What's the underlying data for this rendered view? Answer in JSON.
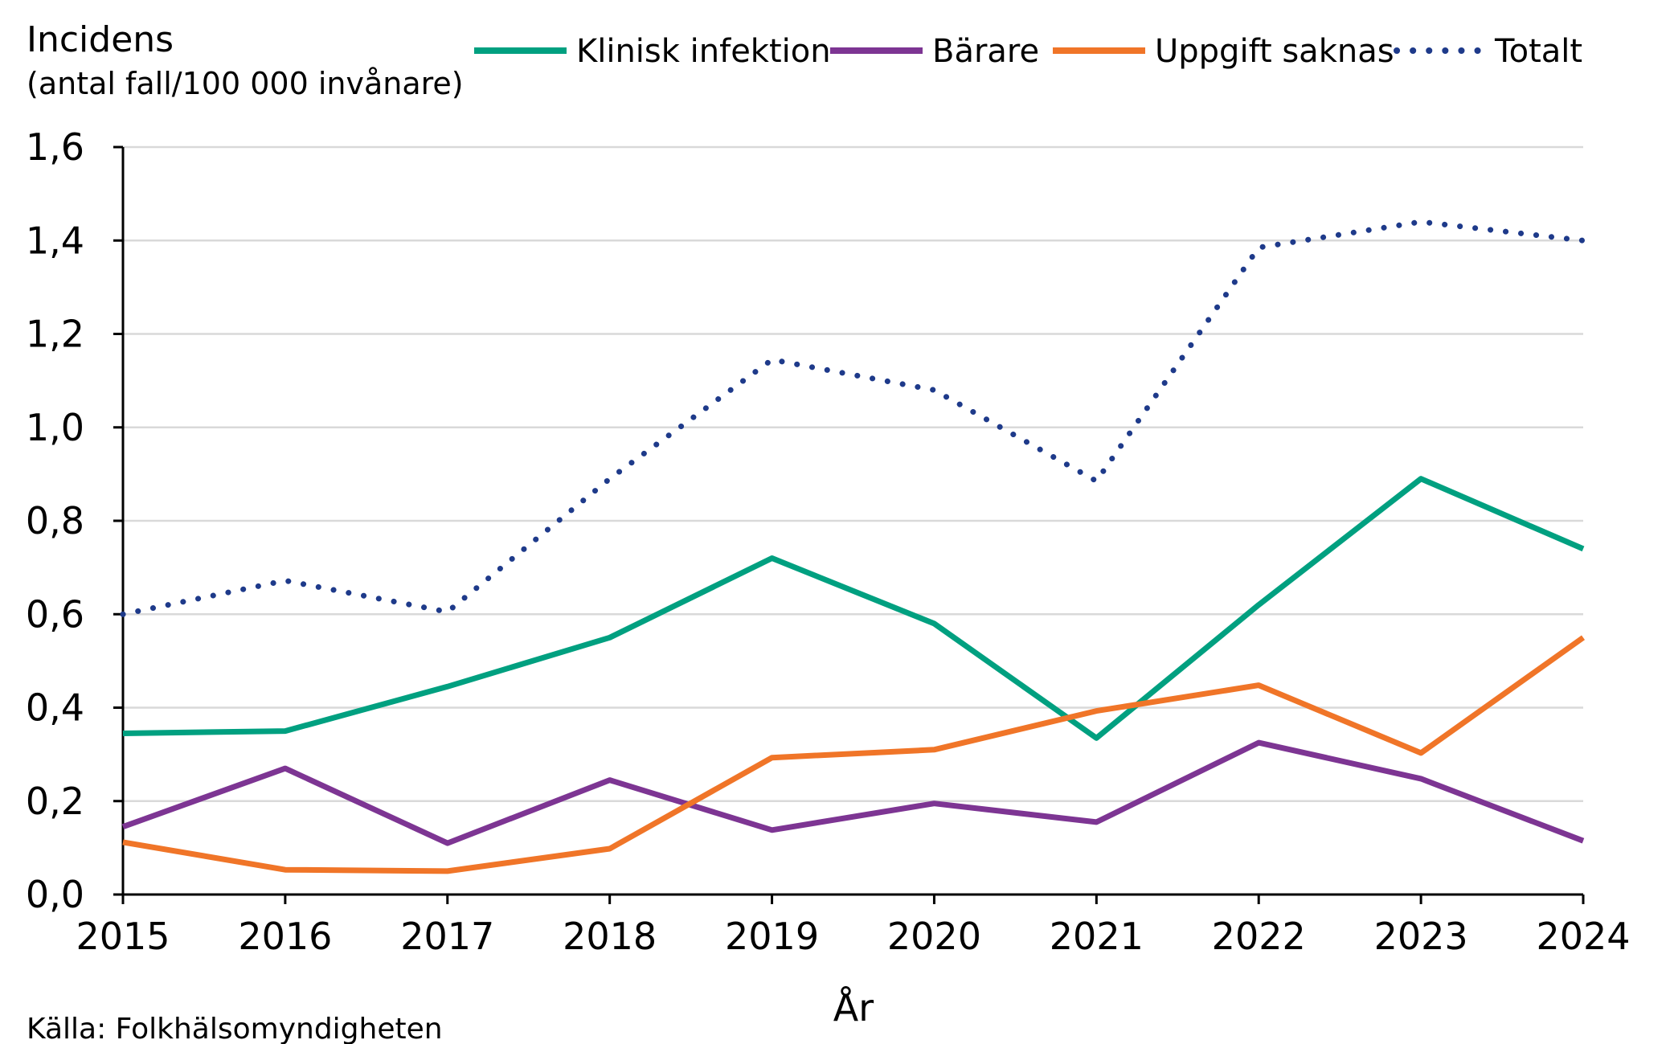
{
  "chart_data": {
    "type": "line",
    "title": "",
    "ylabel_line1": "Incidens",
    "ylabel_line2": "(antal fall/100 000 invånare)",
    "xlabel": "År",
    "source": "Källa: Folkhälsomyndigheten",
    "categories": [
      "2015",
      "2016",
      "2017",
      "2018",
      "2019",
      "2020",
      "2021",
      "2022",
      "2023",
      "2024"
    ],
    "ylim": [
      0,
      1.6
    ],
    "yticks": [
      "0,0",
      "0,2",
      "0,4",
      "0,6",
      "0,8",
      "1,0",
      "1,2",
      "1,4",
      "1,6"
    ],
    "grid": true,
    "legend_position": "top",
    "series": [
      {
        "name": "Klinisk infektion",
        "color": "#00A080",
        "style": "solid",
        "values": [
          0.345,
          0.35,
          0.445,
          0.55,
          0.72,
          0.58,
          0.335,
          0.62,
          0.89,
          0.74
        ]
      },
      {
        "name": "Bärare",
        "color": "#7D3593",
        "style": "solid",
        "values": [
          0.145,
          0.27,
          0.11,
          0.245,
          0.138,
          0.195,
          0.155,
          0.325,
          0.248,
          0.115
        ]
      },
      {
        "name": "Uppgift saknas",
        "color": "#F07528",
        "style": "solid",
        "values": [
          0.112,
          0.053,
          0.05,
          0.098,
          0.293,
          0.31,
          0.393,
          0.448,
          0.303,
          0.55
        ]
      },
      {
        "name": "Totalt",
        "color": "#1E3A8A",
        "style": "dotted",
        "values": [
          0.6,
          0.672,
          0.605,
          0.89,
          1.145,
          1.08,
          0.885,
          1.385,
          1.44,
          1.4
        ]
      }
    ]
  }
}
